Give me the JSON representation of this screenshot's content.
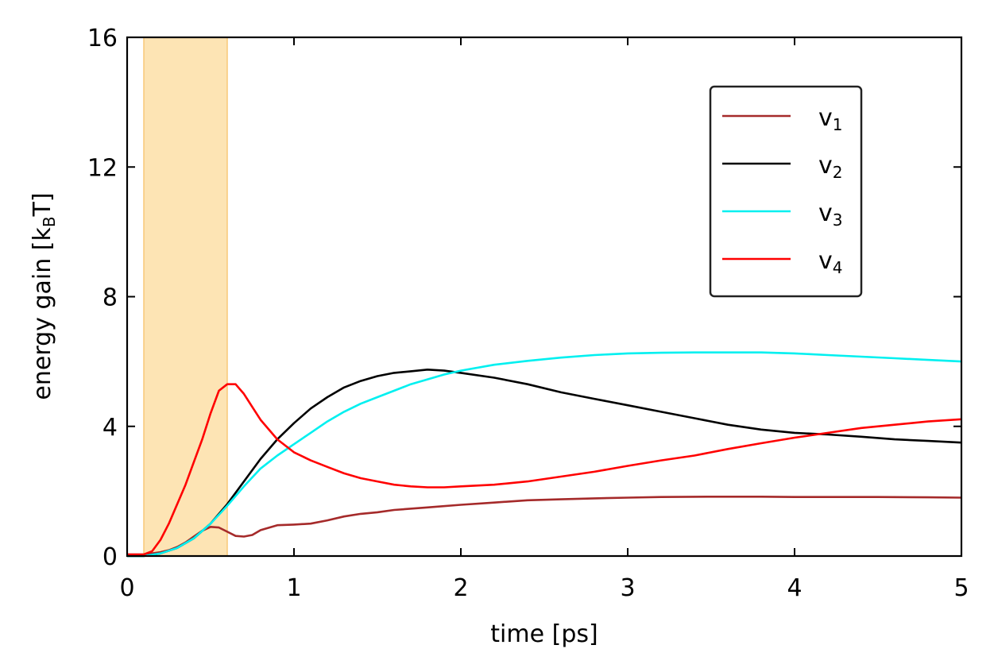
{
  "chart_data": {
    "type": "line",
    "xlabel": "time [ps]",
    "ylabel": {
      "main": "energy gain [k",
      "sub": "B",
      "end": "T]"
    },
    "xlim": [
      0,
      5
    ],
    "ylim": [
      0,
      16
    ],
    "xticks": [
      "0",
      "1",
      "2",
      "3",
      "4",
      "5"
    ],
    "yticks": [
      "0",
      "4",
      "8",
      "12",
      "16"
    ],
    "grid": false,
    "legend_position": "top-right",
    "shaded_region": {
      "x_start": 0.1,
      "x_end": 0.6,
      "color": "#fde4b4"
    },
    "series": [
      {
        "name": "v",
        "sub": "1",
        "color": "#a52a2a",
        "x": [
          0,
          0.1,
          0.15,
          0.2,
          0.25,
          0.3,
          0.35,
          0.4,
          0.45,
          0.5,
          0.55,
          0.6,
          0.65,
          0.7,
          0.75,
          0.8,
          0.9,
          1.0,
          1.1,
          1.2,
          1.3,
          1.4,
          1.5,
          1.6,
          1.8,
          2.0,
          2.2,
          2.4,
          2.6,
          2.8,
          3.0,
          3.2,
          3.5,
          3.8,
          4.0,
          4.2,
          4.5,
          4.8,
          5.0
        ],
        "y": [
          0.05,
          0.05,
          0.08,
          0.12,
          0.18,
          0.28,
          0.42,
          0.6,
          0.78,
          0.9,
          0.88,
          0.75,
          0.62,
          0.6,
          0.65,
          0.8,
          0.95,
          0.97,
          1.0,
          1.1,
          1.22,
          1.3,
          1.35,
          1.42,
          1.5,
          1.58,
          1.65,
          1.72,
          1.75,
          1.78,
          1.8,
          1.82,
          1.83,
          1.83,
          1.82,
          1.82,
          1.82,
          1.81,
          1.8
        ]
      },
      {
        "name": "v",
        "sub": "2",
        "color": "#000000",
        "x": [
          0,
          0.1,
          0.2,
          0.3,
          0.4,
          0.5,
          0.6,
          0.7,
          0.8,
          0.9,
          1.0,
          1.1,
          1.2,
          1.3,
          1.4,
          1.5,
          1.6,
          1.7,
          1.8,
          1.9,
          2.0,
          2.2,
          2.4,
          2.6,
          2.8,
          3.0,
          3.2,
          3.4,
          3.6,
          3.8,
          4.0,
          4.2,
          4.4,
          4.6,
          4.8,
          5.0
        ],
        "y": [
          0.0,
          0.0,
          0.08,
          0.25,
          0.55,
          1.0,
          1.6,
          2.3,
          3.0,
          3.6,
          4.1,
          4.55,
          4.9,
          5.2,
          5.4,
          5.55,
          5.65,
          5.7,
          5.75,
          5.72,
          5.65,
          5.5,
          5.3,
          5.05,
          4.85,
          4.65,
          4.45,
          4.25,
          4.05,
          3.9,
          3.8,
          3.75,
          3.68,
          3.6,
          3.55,
          3.5
        ]
      },
      {
        "name": "v",
        "sub": "3",
        "color": "#00f0f0",
        "x": [
          0,
          0.1,
          0.2,
          0.3,
          0.4,
          0.5,
          0.6,
          0.7,
          0.8,
          0.9,
          1.0,
          1.1,
          1.2,
          1.3,
          1.4,
          1.5,
          1.6,
          1.7,
          1.8,
          1.9,
          2.0,
          2.2,
          2.4,
          2.6,
          2.8,
          3.0,
          3.2,
          3.4,
          3.6,
          3.8,
          4.0,
          4.2,
          4.4,
          4.6,
          4.8,
          5.0
        ],
        "y": [
          0.0,
          0.0,
          0.08,
          0.25,
          0.55,
          1.0,
          1.55,
          2.15,
          2.7,
          3.1,
          3.45,
          3.8,
          4.15,
          4.45,
          4.7,
          4.9,
          5.1,
          5.3,
          5.45,
          5.6,
          5.72,
          5.9,
          6.02,
          6.12,
          6.2,
          6.25,
          6.27,
          6.28,
          6.28,
          6.28,
          6.25,
          6.2,
          6.15,
          6.1,
          6.05,
          6.0
        ]
      },
      {
        "name": "v",
        "sub": "4",
        "color": "#ff0000",
        "x": [
          0,
          0.1,
          0.15,
          0.2,
          0.25,
          0.3,
          0.35,
          0.4,
          0.45,
          0.5,
          0.55,
          0.6,
          0.65,
          0.7,
          0.75,
          0.8,
          0.9,
          1.0,
          1.1,
          1.2,
          1.3,
          1.4,
          1.5,
          1.6,
          1.7,
          1.8,
          1.9,
          2.0,
          2.2,
          2.4,
          2.6,
          2.8,
          3.0,
          3.2,
          3.4,
          3.6,
          3.8,
          4.0,
          4.2,
          4.4,
          4.6,
          4.8,
          5.0
        ],
        "y": [
          0.05,
          0.05,
          0.15,
          0.5,
          1.0,
          1.6,
          2.2,
          2.9,
          3.6,
          4.4,
          5.1,
          5.3,
          5.3,
          5.0,
          4.6,
          4.2,
          3.6,
          3.2,
          2.95,
          2.75,
          2.55,
          2.4,
          2.3,
          2.2,
          2.15,
          2.12,
          2.12,
          2.15,
          2.2,
          2.3,
          2.45,
          2.6,
          2.78,
          2.95,
          3.1,
          3.3,
          3.48,
          3.65,
          3.8,
          3.95,
          4.05,
          4.15,
          4.22
        ]
      }
    ]
  }
}
